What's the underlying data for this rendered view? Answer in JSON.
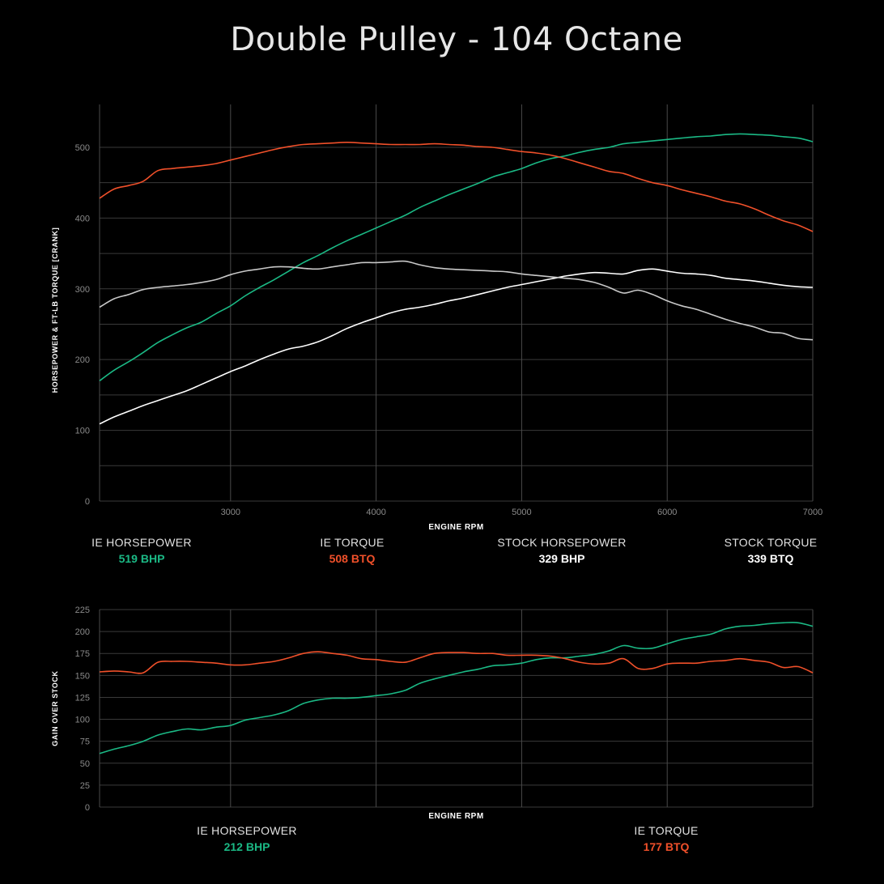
{
  "title": "Double Pulley - 104 Octane",
  "colors": {
    "ie_hp": "#1bb985",
    "ie_tq": "#f0502a",
    "stock_hp": "#ffffff",
    "stock_tq": "#c8c8c8",
    "grid": "#3a3a3a",
    "axis_text": "#8a8a8a"
  },
  "legend_top": [
    {
      "label": "IE HORSEPOWER",
      "value": "519 BHP",
      "color": "#1bb985"
    },
    {
      "label": "IE TORQUE",
      "value": "508 BTQ",
      "color": "#f0502a"
    },
    {
      "label": "STOCK HORSEPOWER",
      "value": "329 BHP",
      "color": "#ffffff"
    },
    {
      "label": "STOCK TORQUE",
      "value": "339 BTQ",
      "color": "#ffffff"
    }
  ],
  "legend_bottom": [
    {
      "label": "IE HORSEPOWER",
      "value": "212 BHP",
      "color": "#1bb985"
    },
    {
      "label": "IE TORQUE",
      "value": "177 BTQ",
      "color": "#f0502a"
    }
  ],
  "chart_data": [
    {
      "type": "line",
      "xlabel": "ENGINE RPM",
      "ylabel": "HORSEPOWER & FT-LB TORQUE [CRANK]",
      "xlim": [
        2100,
        7000
      ],
      "ylim": [
        0,
        540
      ],
      "x_ticks": [
        3000,
        4000,
        5000,
        6000,
        7000
      ],
      "y_ticks": [
        0,
        100,
        200,
        300,
        400,
        500
      ],
      "grid": true,
      "x": [
        2100,
        2200,
        2300,
        2400,
        2500,
        2600,
        2700,
        2800,
        2900,
        3000,
        3100,
        3200,
        3300,
        3400,
        3500,
        3600,
        3700,
        3800,
        3900,
        4000,
        4100,
        4200,
        4300,
        4400,
        4500,
        4600,
        4700,
        4800,
        4900,
        5000,
        5100,
        5200,
        5300,
        5400,
        5500,
        5600,
        5700,
        5800,
        5900,
        6000,
        6100,
        6200,
        6300,
        6400,
        6500,
        6600,
        6700,
        6800,
        6900,
        7000
      ],
      "series": [
        {
          "name": "IE HORSEPOWER",
          "color": "#1bb985",
          "values": [
            170,
            185,
            197,
            210,
            224,
            235,
            245,
            253,
            265,
            276,
            290,
            302,
            313,
            325,
            337,
            347,
            358,
            368,
            377,
            386,
            395,
            404,
            415,
            424,
            433,
            441,
            449,
            458,
            464,
            470,
            478,
            484,
            488,
            493,
            497,
            500,
            505,
            507,
            509,
            511,
            513,
            515,
            516,
            518,
            519,
            518,
            517,
            515,
            513,
            508
          ]
        },
        {
          "name": "IE TORQUE",
          "color": "#f0502a",
          "values": [
            428,
            441,
            446,
            452,
            467,
            470,
            472,
            474,
            477,
            482,
            487,
            492,
            497,
            501,
            504,
            505,
            506,
            507,
            506,
            505,
            504,
            504,
            504,
            505,
            504,
            503,
            501,
            500,
            497,
            494,
            492,
            489,
            484,
            478,
            472,
            466,
            463,
            456,
            450,
            446,
            440,
            435,
            430,
            424,
            420,
            413,
            404,
            396,
            390,
            381
          ]
        },
        {
          "name": "STOCK HORSEPOWER",
          "color": "#ffffff",
          "values": [
            109,
            119,
            127,
            135,
            142,
            149,
            156,
            165,
            174,
            183,
            191,
            200,
            208,
            215,
            219,
            225,
            234,
            244,
            252,
            259,
            266,
            271,
            274,
            278,
            283,
            287,
            292,
            297,
            302,
            306,
            310,
            314,
            318,
            321,
            323,
            322,
            321,
            326,
            328,
            325,
            322,
            321,
            319,
            315,
            313,
            311,
            308,
            305,
            303,
            302
          ]
        },
        {
          "name": "STOCK TORQUE",
          "color": "#c8c8c8",
          "values": [
            274,
            286,
            292,
            299,
            302,
            304,
            306,
            309,
            313,
            320,
            325,
            328,
            331,
            331,
            329,
            328,
            331,
            334,
            337,
            337,
            338,
            339,
            334,
            330,
            328,
            327,
            326,
            325,
            324,
            321,
            319,
            317,
            315,
            313,
            309,
            302,
            294,
            298,
            292,
            283,
            276,
            271,
            264,
            257,
            251,
            246,
            239,
            237,
            230,
            228
          ]
        }
      ]
    },
    {
      "type": "line",
      "xlabel": "ENGINE RPM",
      "ylabel": "GAIN OVER STOCK",
      "xlim": [
        2100,
        7000
      ],
      "ylim": [
        0,
        225
      ],
      "y_ticks": [
        0,
        25,
        50,
        75,
        100,
        125,
        150,
        175,
        200,
        225
      ],
      "x_gridlines": [
        3000,
        4000,
        5000,
        6000,
        7000
      ],
      "grid": true,
      "x": [
        2100,
        2200,
        2300,
        2400,
        2500,
        2600,
        2700,
        2800,
        2900,
        3000,
        3100,
        3200,
        3300,
        3400,
        3500,
        3600,
        3700,
        3800,
        3900,
        4000,
        4100,
        4200,
        4300,
        4400,
        4500,
        4600,
        4700,
        4800,
        4900,
        5000,
        5100,
        5200,
        5300,
        5400,
        5500,
        5600,
        5700,
        5800,
        5900,
        6000,
        6100,
        6200,
        6300,
        6400,
        6500,
        6600,
        6700,
        6800,
        6900,
        7000
      ],
      "series": [
        {
          "name": "IE HORSEPOWER",
          "color": "#1bb985",
          "values": [
            61,
            66,
            70,
            75,
            82,
            86,
            89,
            88,
            91,
            93,
            99,
            102,
            105,
            110,
            118,
            122,
            124,
            124,
            125,
            127,
            129,
            133,
            141,
            146,
            150,
            154,
            157,
            161,
            162,
            164,
            168,
            170,
            170,
            172,
            174,
            178,
            184,
            181,
            181,
            186,
            191,
            194,
            197,
            203,
            206,
            207,
            209,
            210,
            210,
            206
          ]
        },
        {
          "name": "IE TORQUE",
          "color": "#f0502a",
          "values": [
            154,
            155,
            154,
            153,
            165,
            166,
            166,
            165,
            164,
            162,
            162,
            164,
            166,
            170,
            175,
            177,
            175,
            173,
            169,
            168,
            166,
            165,
            170,
            175,
            176,
            176,
            175,
            175,
            173,
            173,
            173,
            172,
            169,
            165,
            163,
            164,
            169,
            158,
            158,
            163,
            164,
            164,
            166,
            167,
            169,
            167,
            165,
            159,
            160,
            153
          ]
        }
      ]
    }
  ]
}
